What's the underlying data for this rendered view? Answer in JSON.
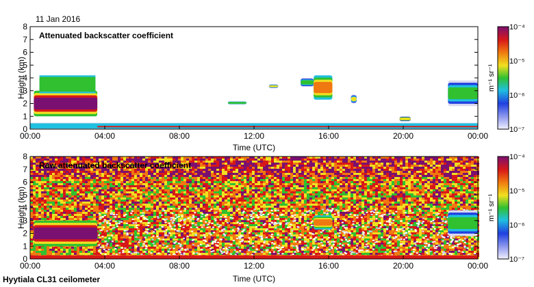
{
  "date": "11 Jan 2016",
  "footer": "Hyytiala CL31 ceilometer",
  "colors": {
    "purple": "#7a1070",
    "red": "#d81818",
    "orange": "#f07810",
    "yellow": "#f0e020",
    "green": "#30c030",
    "cyan": "#20c0e0",
    "blue": "#2040e0",
    "pale": "#d8d8f0"
  },
  "chart_data": [
    {
      "type": "heatmap",
      "title": "Attenuated backscatter coefficient",
      "xlabel": "Time (UTC)",
      "ylabel": "Height (km)",
      "xlim": [
        0,
        24
      ],
      "ylim": [
        0,
        8
      ],
      "xticks": [
        "00:00",
        "04:00",
        "08:00",
        "12:00",
        "16:00",
        "20:00",
        "00:00"
      ],
      "yticks": [
        "0",
        "1",
        "2",
        "3",
        "4",
        "5",
        "6",
        "7",
        "8"
      ],
      "colorbar": {
        "label": "m⁻¹ sr⁻¹",
        "ticks": [
          "10⁻⁷",
          "10⁻⁶",
          "10⁻⁵",
          "10⁻⁴"
        ],
        "log_range": [
          -7,
          -4
        ]
      },
      "features": [
        {
          "kind": "cloud",
          "t": [
            0.2,
            3.6
          ],
          "h": [
            1.0,
            3.0
          ],
          "level": -4.3
        },
        {
          "kind": "cloud_top",
          "t": [
            0.5,
            3.5
          ],
          "h": [
            2.8,
            4.2
          ],
          "level": -5.6
        },
        {
          "kind": "boundary_layer",
          "t": [
            0,
            24
          ],
          "h": [
            0,
            0.5
          ],
          "level": -6.2
        },
        {
          "kind": "cloud",
          "t": [
            10.6,
            11.6
          ],
          "h": [
            1.9,
            2.2
          ],
          "level": -5.8
        },
        {
          "kind": "cloud",
          "t": [
            12.8,
            13.3
          ],
          "h": [
            3.2,
            3.5
          ],
          "level": -5.5
        },
        {
          "kind": "cloud",
          "t": [
            14.5,
            15.2
          ],
          "h": [
            3.3,
            4.0
          ],
          "level": -5.6
        },
        {
          "kind": "cloud",
          "t": [
            15.2,
            16.2
          ],
          "h": [
            2.3,
            4.2
          ],
          "level": -4.8
        },
        {
          "kind": "cloud",
          "t": [
            17.2,
            17.5
          ],
          "h": [
            2.0,
            2.7
          ],
          "level": -5.5
        },
        {
          "kind": "cloud",
          "t": [
            19.8,
            20.4
          ],
          "h": [
            0.6,
            1.0
          ],
          "level": -5.4
        },
        {
          "kind": "cloud",
          "t": [
            22.4,
            24
          ],
          "h": [
            1.8,
            3.8
          ],
          "level": -5.6
        }
      ]
    },
    {
      "type": "heatmap",
      "title": "Raw attenuated backscatter coefficient",
      "xlabel": "Time (UTC)",
      "ylabel": "Height (km)",
      "xlim": [
        0,
        24
      ],
      "ylim": [
        0,
        8
      ],
      "xticks": [
        "00:00",
        "04:00",
        "08:00",
        "12:00",
        "16:00",
        "20:00",
        "00:00"
      ],
      "yticks": [
        "0",
        "1",
        "2",
        "3",
        "4",
        "5",
        "6",
        "7",
        "8"
      ],
      "colorbar": {
        "label": "m⁻¹ sr⁻¹",
        "ticks": [
          "10⁻⁷",
          "10⁻⁶",
          "10⁻⁵",
          "10⁻⁴"
        ],
        "log_range": [
          -7,
          -4
        ]
      },
      "features": [
        {
          "kind": "noise",
          "t": [
            0,
            24
          ],
          "h": [
            0,
            8
          ],
          "level": -5.3
        },
        {
          "kind": "cloud",
          "t": [
            0.2,
            3.6
          ],
          "h": [
            1.0,
            3.0
          ],
          "level": -4.3
        },
        {
          "kind": "clear_low",
          "t": [
            3.6,
            24
          ],
          "h": [
            0.2,
            4.0
          ],
          "level": -6.6
        },
        {
          "kind": "cloud",
          "t": [
            15.2,
            16.2
          ],
          "h": [
            2.3,
            3.4
          ],
          "level": -4.8
        },
        {
          "kind": "cloud",
          "t": [
            22.4,
            24
          ],
          "h": [
            1.8,
            3.8
          ],
          "level": -5.6
        },
        {
          "kind": "surface",
          "t": [
            0,
            24
          ],
          "h": [
            0,
            0.3
          ],
          "level": -4.6
        }
      ]
    }
  ]
}
